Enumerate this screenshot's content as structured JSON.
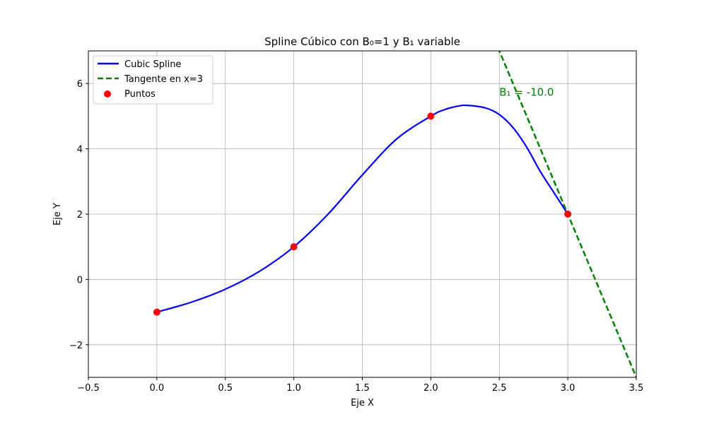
{
  "chart_data": {
    "type": "line",
    "title": "Spline Cúbico con B₀=1 y B₁ variable",
    "xlabel": "Eje X",
    "ylabel": "Eje Y",
    "xlim": [
      -0.5,
      3.5
    ],
    "ylim": [
      -3,
      7
    ],
    "xticks": [
      -0.5,
      0.0,
      0.5,
      1.0,
      1.5,
      2.0,
      2.5,
      3.0,
      3.5
    ],
    "xtick_labels": [
      "−0.5",
      "0.0",
      "0.5",
      "1.0",
      "1.5",
      "2.0",
      "2.5",
      "3.0",
      "3.5"
    ],
    "yticks": [
      -2,
      0,
      2,
      4,
      6
    ],
    "ytick_labels": [
      "−2",
      "0",
      "2",
      "4",
      "6"
    ],
    "grid": true,
    "legend_position": "upper-left",
    "colors": {
      "spline": "#0000ff",
      "tangent": "#008000",
      "points": "#ff0000",
      "grid": "#b0b0b0"
    },
    "series": [
      {
        "name": "Cubic Spline",
        "kind": "line",
        "style": "solid",
        "x": [
          0.0,
          0.25,
          0.5,
          0.75,
          1.0,
          1.25,
          1.5,
          1.75,
          2.0,
          2.1,
          2.2,
          2.27,
          2.4,
          2.5,
          2.6,
          2.7,
          2.8,
          2.9,
          3.0
        ],
        "y": [
          -1.0,
          -0.7,
          -0.3,
          0.25,
          1.0,
          2.0,
          3.2,
          4.3,
          5.0,
          5.2,
          5.31,
          5.33,
          5.25,
          5.05,
          4.65,
          4.05,
          3.3,
          2.65,
          2.0
        ]
      },
      {
        "name": "Tangente en x=3",
        "kind": "line",
        "style": "dashed",
        "x": [
          2.49,
          3.5
        ],
        "y": [
          7.1,
          -3.0
        ]
      },
      {
        "name": "Puntos",
        "kind": "scatter",
        "x": [
          0.0,
          1.0,
          2.0,
          3.0
        ],
        "y": [
          -1.0,
          1.0,
          5.0,
          2.0
        ]
      }
    ],
    "annotation": {
      "text": "B₁ = -10.0",
      "x": 2.5,
      "y": 5.5
    }
  }
}
